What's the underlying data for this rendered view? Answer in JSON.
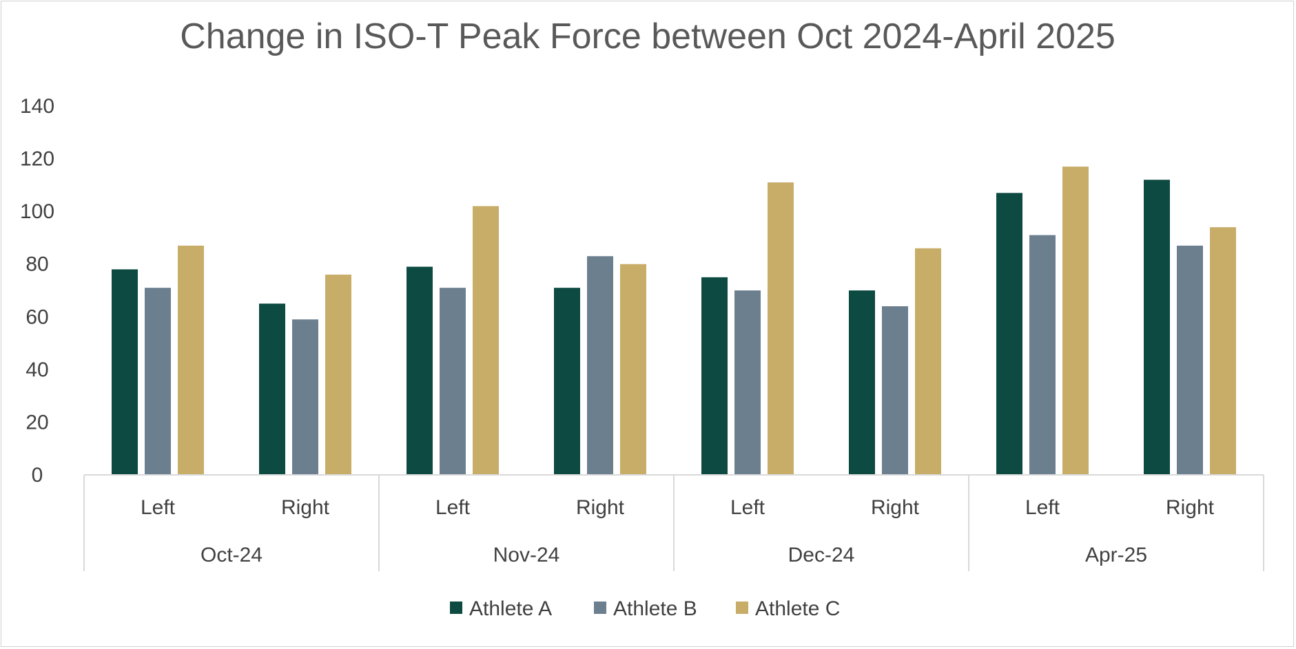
{
  "chart_data": {
    "type": "bar",
    "title": "Change in ISO-T Peak Force between Oct 2024-April 2025",
    "xlabel": "",
    "ylabel": "",
    "ylim": [
      0,
      140
    ],
    "yticks": [
      0,
      20,
      40,
      60,
      80,
      100,
      120,
      140
    ],
    "grid": false,
    "legend_position": "bottom",
    "groups": [
      {
        "label": "Oct-24",
        "categories": [
          "Left",
          "Right"
        ]
      },
      {
        "label": "Nov-24",
        "categories": [
          "Left",
          "Right"
        ]
      },
      {
        "label": "Dec-24",
        "categories": [
          "Left",
          "Right"
        ]
      },
      {
        "label": "Apr-25",
        "categories": [
          "Left",
          "Right"
        ]
      }
    ],
    "categories": [
      "Oct-24 Left",
      "Oct-24 Right",
      "Nov-24 Left",
      "Nov-24 Right",
      "Dec-24 Left",
      "Dec-24 Right",
      "Apr-25 Left",
      "Apr-25 Right"
    ],
    "series": [
      {
        "name": "Athlete A",
        "color": "#0d4a42",
        "values": [
          78,
          65,
          79,
          71,
          75,
          70,
          107,
          112
        ]
      },
      {
        "name": "Athlete B",
        "color": "#6b7f8e",
        "values": [
          71,
          59,
          71,
          83,
          70,
          64,
          91,
          87
        ]
      },
      {
        "name": "Athlete C",
        "color": "#c8ad69",
        "values": [
          87,
          76,
          102,
          80,
          111,
          86,
          117,
          94
        ]
      }
    ]
  }
}
